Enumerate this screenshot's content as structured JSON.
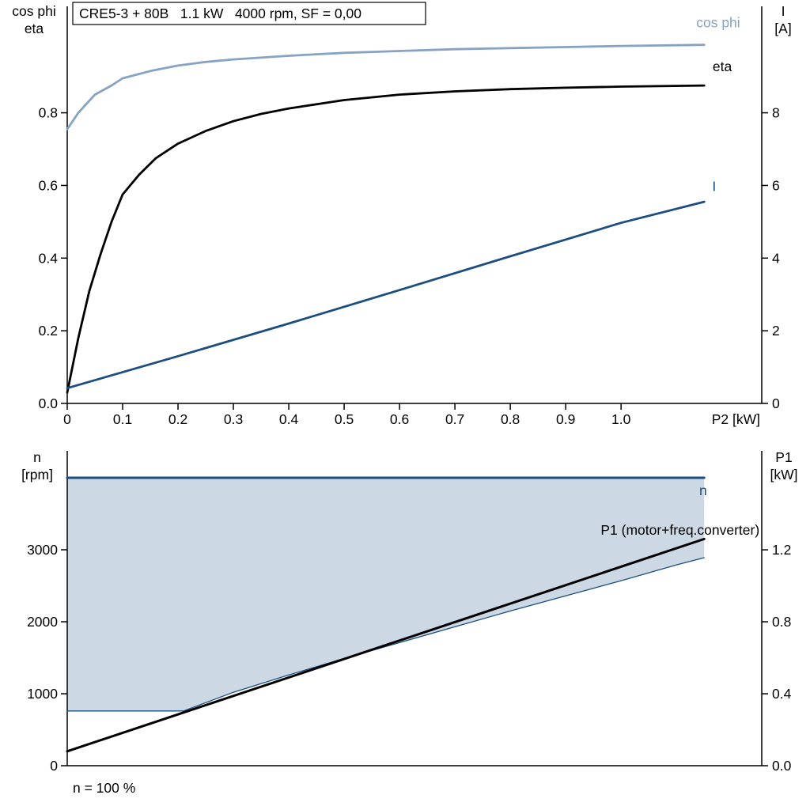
{
  "page": {
    "background": "#ffffff",
    "title_box": "CRE5-3 + 80B   1.1 kW   4000 rpm, SF = 0,00"
  },
  "colors": {
    "cos_phi": "#87a3c3",
    "eta": "#000000",
    "current": "#1c4e80",
    "speed": "#1c4e80",
    "p1": "#000000",
    "fill": "#cdd8e5",
    "axis": "#000000"
  },
  "chart_data": [
    {
      "id": "top-chart",
      "type": "line",
      "title": "CRE5-3 + 80B   1.1 kW   4000 rpm, SF = 0,00",
      "x_axis": {
        "label": "P2 [kW]",
        "range": [
          0,
          1.254
        ],
        "ticks": [
          0,
          0.1,
          0.2,
          0.3,
          0.4,
          0.5,
          0.6,
          0.7,
          0.8,
          0.9,
          1.0
        ],
        "tick_labels": [
          "0",
          "0.1",
          "0.2",
          "0.3",
          "0.4",
          "0.5",
          "0.6",
          "0.7",
          "0.8",
          "0.9",
          "1.0"
        ]
      },
      "left_axis": {
        "title_lines": [
          "cos phi",
          "eta"
        ],
        "range": [
          0,
          1.08
        ],
        "ticks": [
          0,
          0.2,
          0.4,
          0.6,
          0.8
        ],
        "tick_labels": [
          "0.0",
          "0.2",
          "0.4",
          "0.6",
          "0.8"
        ]
      },
      "right_axis": {
        "title_lines": [
          "I",
          "[A]"
        ],
        "range": [
          0,
          10.8
        ],
        "ticks": [
          0,
          2,
          4,
          6,
          8
        ],
        "tick_labels": [
          "0",
          "2",
          "4",
          "6",
          "8"
        ]
      },
      "series": [
        {
          "name": "cos phi",
          "axis": "left",
          "color": "#87a3c3",
          "width": 2.8,
          "label": {
            "text": "cos phi",
            "x": 1.215,
            "y": 1.035,
            "anchor": "end"
          },
          "points": [
            [
              0,
              0.755
            ],
            [
              0.02,
              0.8
            ],
            [
              0.05,
              0.85
            ],
            [
              0.08,
              0.875
            ],
            [
              0.1,
              0.895
            ],
            [
              0.15,
              0.915
            ],
            [
              0.2,
              0.93
            ],
            [
              0.25,
              0.94
            ],
            [
              0.3,
              0.947
            ],
            [
              0.4,
              0.957
            ],
            [
              0.5,
              0.965
            ],
            [
              0.6,
              0.97
            ],
            [
              0.7,
              0.975
            ],
            [
              0.8,
              0.978
            ],
            [
              0.9,
              0.981
            ],
            [
              1.0,
              0.984
            ],
            [
              1.15,
              0.987
            ]
          ]
        },
        {
          "name": "eta",
          "axis": "left",
          "color": "#000000",
          "width": 2.8,
          "label": {
            "text": "eta",
            "x": 1.2,
            "y": 0.915,
            "anchor": "end"
          },
          "points": [
            [
              0,
              0.03
            ],
            [
              0.02,
              0.18
            ],
            [
              0.04,
              0.31
            ],
            [
              0.06,
              0.41
            ],
            [
              0.08,
              0.5
            ],
            [
              0.1,
              0.575
            ],
            [
              0.13,
              0.63
            ],
            [
              0.16,
              0.675
            ],
            [
              0.2,
              0.715
            ],
            [
              0.25,
              0.75
            ],
            [
              0.3,
              0.777
            ],
            [
              0.35,
              0.797
            ],
            [
              0.4,
              0.812
            ],
            [
              0.5,
              0.835
            ],
            [
              0.6,
              0.85
            ],
            [
              0.7,
              0.859
            ],
            [
              0.8,
              0.865
            ],
            [
              0.9,
              0.869
            ],
            [
              1.0,
              0.872
            ],
            [
              1.15,
              0.875
            ]
          ]
        },
        {
          "name": "I",
          "axis": "right",
          "color": "#1c4e80",
          "width": 2.8,
          "label": {
            "text": "I",
            "x": 1.168,
            "y": 5.85,
            "anchor": "middle"
          },
          "points": [
            [
              0,
              0.42
            ],
            [
              0.2,
              1.3
            ],
            [
              0.4,
              2.2
            ],
            [
              0.6,
              3.12
            ],
            [
              0.8,
              4.05
            ],
            [
              1.0,
              4.97
            ],
            [
              1.15,
              5.55
            ]
          ]
        }
      ]
    },
    {
      "id": "bottom-chart",
      "type": "line",
      "annotation": "n = 100 %",
      "x_axis": {
        "label": "",
        "range": [
          0,
          1.254
        ],
        "ticks": [],
        "tick_labels": []
      },
      "left_axis": {
        "title_lines": [
          "n",
          "[rpm]"
        ],
        "range": [
          0,
          4374
        ],
        "ticks": [
          0,
          1000,
          2000,
          3000
        ],
        "tick_labels": [
          "0",
          "1000",
          "2000",
          "3000"
        ]
      },
      "right_axis": {
        "title_lines": [
          "P1",
          "[kW]"
        ],
        "range": [
          0,
          1.75
        ],
        "ticks": [
          0,
          0.4,
          0.8,
          1.2
        ],
        "tick_labels": [
          "0.0",
          "0.4",
          "0.8",
          "1.2"
        ]
      },
      "fill": {
        "lower": "n min",
        "upper": "n",
        "color": "#cdd8e5"
      },
      "series": [
        {
          "name": "n min",
          "axis": "left",
          "color": "#1c4e80",
          "width": 1.3,
          "points": [
            [
              0,
              760
            ],
            [
              0.21,
              760
            ],
            [
              0.3,
              1020
            ],
            [
              0.4,
              1260
            ],
            [
              0.5,
              1490
            ],
            [
              0.6,
              1710
            ],
            [
              0.7,
              1930
            ],
            [
              0.8,
              2150
            ],
            [
              0.9,
              2360
            ],
            [
              1.0,
              2570
            ],
            [
              1.1,
              2790
            ],
            [
              1.15,
              2890
            ]
          ]
        },
        {
          "name": "n",
          "axis": "left",
          "color": "#1c4e80",
          "width": 3,
          "label": {
            "text": "n",
            "x": 1.155,
            "y": 3760,
            "anchor": "end"
          },
          "points": [
            [
              0,
              4000
            ],
            [
              1.15,
              4000
            ]
          ]
        },
        {
          "name": "P1 (motor+freq.converter)",
          "axis": "right",
          "color": "#000000",
          "width": 3,
          "label": {
            "text": "P1 (motor+freq.converter)",
            "x": 1.25,
            "y": 1.285,
            "anchor": "end"
          },
          "points": [
            [
              0,
              0.08
            ],
            [
              1.15,
              1.26
            ]
          ]
        }
      ]
    }
  ]
}
